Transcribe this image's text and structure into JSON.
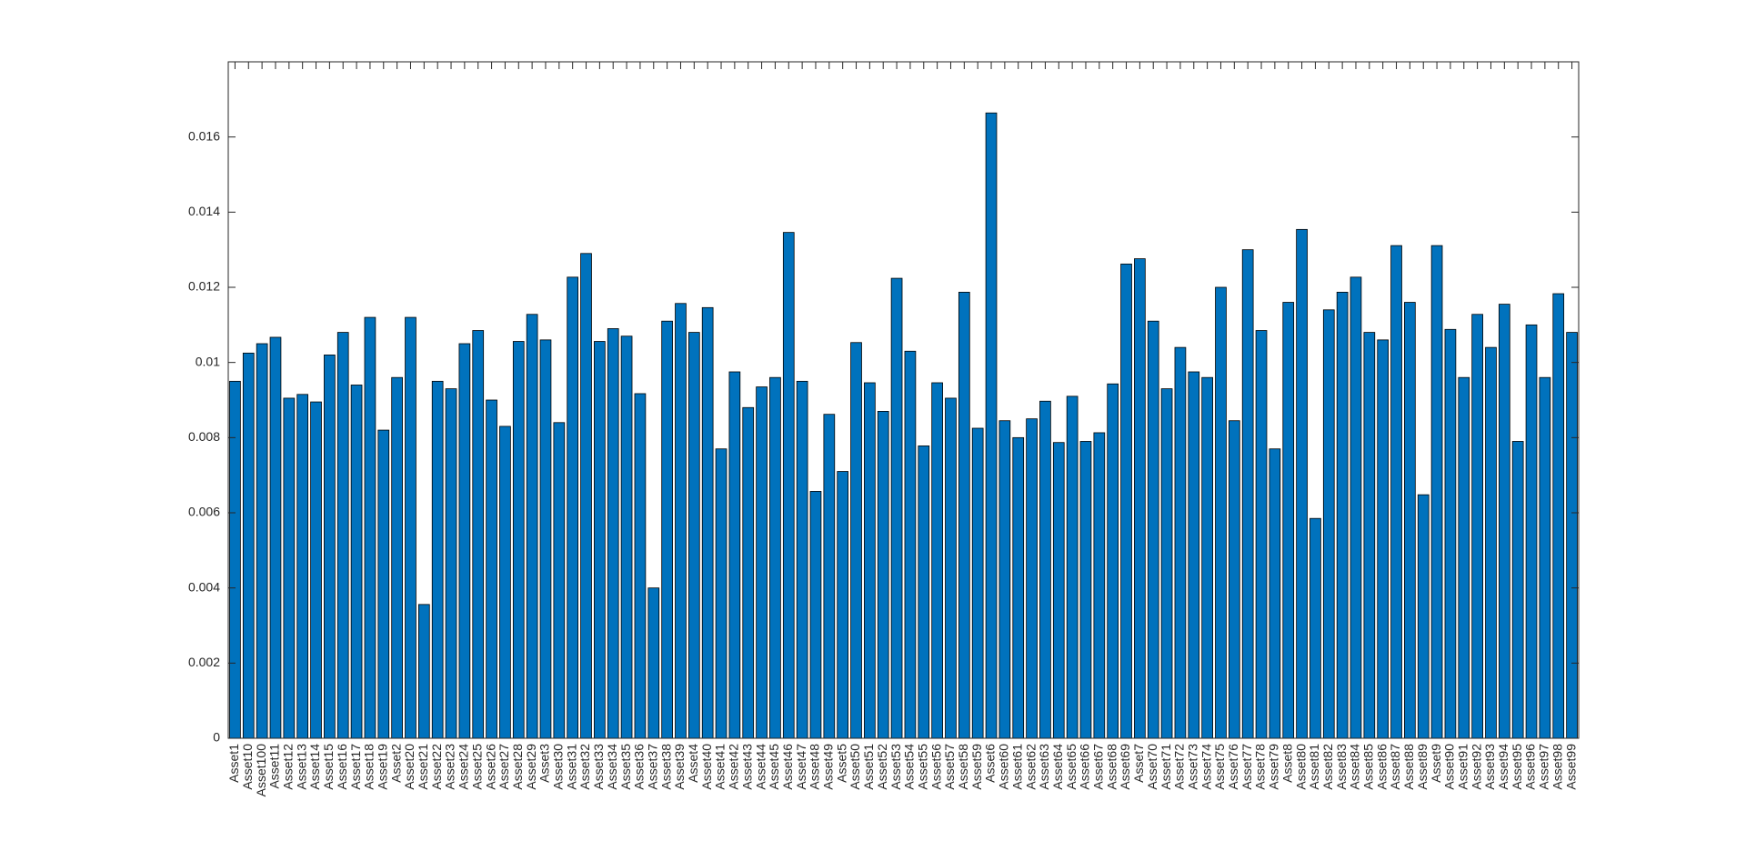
{
  "chart_data": {
    "type": "bar",
    "categories": [
      "Asset1",
      "Asset10",
      "Asset100",
      "Asset11",
      "Asset12",
      "Asset13",
      "Asset14",
      "Asset15",
      "Asset16",
      "Asset17",
      "Asset18",
      "Asset19",
      "Asset2",
      "Asset20",
      "Asset21",
      "Asset22",
      "Asset23",
      "Asset24",
      "Asset25",
      "Asset26",
      "Asset27",
      "Asset28",
      "Asset29",
      "Asset3",
      "Asset30",
      "Asset31",
      "Asset32",
      "Asset33",
      "Asset34",
      "Asset35",
      "Asset36",
      "Asset37",
      "Asset38",
      "Asset39",
      "Asset4",
      "Asset40",
      "Asset41",
      "Asset42",
      "Asset43",
      "Asset44",
      "Asset45",
      "Asset46",
      "Asset47",
      "Asset48",
      "Asset49",
      "Asset5",
      "Asset50",
      "Asset51",
      "Asset52",
      "Asset53",
      "Asset54",
      "Asset55",
      "Asset56",
      "Asset57",
      "Asset58",
      "Asset59",
      "Asset6",
      "Asset60",
      "Asset61",
      "Asset62",
      "Asset63",
      "Asset64",
      "Asset65",
      "Asset66",
      "Asset67",
      "Asset68",
      "Asset69",
      "Asset7",
      "Asset70",
      "Asset71",
      "Asset72",
      "Asset73",
      "Asset74",
      "Asset75",
      "Asset76",
      "Asset77",
      "Asset78",
      "Asset79",
      "Asset8",
      "Asset80",
      "Asset81",
      "Asset82",
      "Asset83",
      "Asset84",
      "Asset85",
      "Asset86",
      "Asset87",
      "Asset88",
      "Asset89",
      "Asset9",
      "Asset90",
      "Asset91",
      "Asset92",
      "Asset93",
      "Asset94",
      "Asset95",
      "Asset96",
      "Asset97",
      "Asset98",
      "Asset99"
    ],
    "values": [
      0.0095,
      0.01025,
      0.0105,
      0.01067,
      0.00905,
      0.00915,
      0.00895,
      0.0102,
      0.0108,
      0.0094,
      0.0112,
      0.0082,
      0.0096,
      0.0112,
      0.00356,
      0.0095,
      0.0093,
      0.0105,
      0.01085,
      0.009,
      0.0083,
      0.01056,
      0.01128,
      0.0106,
      0.0084,
      0.01227,
      0.0129,
      0.01056,
      0.0109,
      0.0107,
      0.00917,
      0.004,
      0.0111,
      0.01157,
      0.0108,
      0.01146,
      0.0077,
      0.00975,
      0.0088,
      0.00935,
      0.0096,
      0.01346,
      0.0095,
      0.00657,
      0.00862,
      0.0071,
      0.01053,
      0.00946,
      0.0087,
      0.01224,
      0.0103,
      0.00778,
      0.00946,
      0.00905,
      0.01187,
      0.00825,
      0.01664,
      0.00845,
      0.008,
      0.0085,
      0.00897,
      0.00787,
      0.0091,
      0.0079,
      0.00813,
      0.00943,
      0.01262,
      0.01276,
      0.0111,
      0.0093,
      0.0104,
      0.00975,
      0.0096,
      0.012,
      0.00845,
      0.013,
      0.01085,
      0.0077,
      0.0116,
      0.01354,
      0.00585,
      0.0114,
      0.01187,
      0.01227,
      0.0108,
      0.0106,
      0.01311,
      0.0116,
      0.00648,
      0.01311,
      0.01088,
      0.0096,
      0.01128,
      0.0104,
      0.01155,
      0.0079,
      0.011,
      0.0096,
      0.01183,
      0.0108
    ],
    "color": "#0072BD",
    "ylim": [
      0,
      0.018
    ],
    "yticks": [
      0,
      0.002,
      0.004,
      0.006,
      0.008,
      0.01,
      0.012,
      0.014,
      0.016
    ],
    "grid": false
  }
}
